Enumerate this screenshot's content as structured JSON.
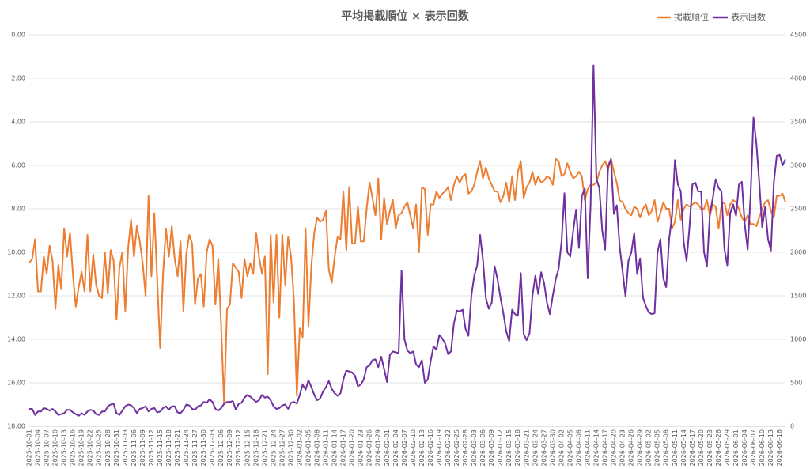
{
  "chart_data": {
    "type": "line",
    "title": "平均掲載順位 × 表示回数",
    "categories": [
      "2025-10-01",
      null,
      null,
      "2025-10-04",
      null,
      null,
      "2025-10-07",
      null,
      null,
      "2025-10-10",
      null,
      null,
      "2025-10-13",
      null,
      null,
      "2025-10-16",
      null,
      null,
      "2025-10-19",
      null,
      null,
      "2025-10-22",
      null,
      null,
      "2025-10-25",
      null,
      null,
      "2025-10-28",
      null,
      null,
      "2025-10-31",
      null,
      null,
      "2025-11-03",
      null,
      null,
      "2025-11-06",
      null,
      null,
      "2025-11-09",
      null,
      null,
      "2025-11-12",
      null,
      null,
      "2025-11-15",
      null,
      null,
      "2025-11-18",
      null,
      null,
      "2025-11-21",
      null,
      null,
      "2025-11-24",
      null,
      null,
      "2025-11-27",
      null,
      null,
      "2025-11-30",
      null,
      null,
      "2025-12-03",
      null,
      null,
      "2025-12-06",
      null,
      null,
      "2025-12-09",
      null,
      null,
      "2025-12-12",
      null,
      null,
      "2025-12-15",
      null,
      null,
      "2025-12-18",
      null,
      null,
      "2025-12-21",
      null,
      null,
      "2025-12-24",
      null,
      null,
      "2025-12-27",
      null,
      null,
      "2025-12-30",
      null,
      null,
      "2026-01-02",
      null,
      null,
      "2026-01-05",
      null,
      null,
      "2026-01-08",
      null,
      null,
      "2026-01-11",
      null,
      null,
      "2026-01-14",
      null,
      null,
      "2026-01-17",
      null,
      null,
      "2026-01-20",
      null,
      null,
      "2026-01-23",
      null,
      null,
      "2026-01-26",
      null,
      null,
      "2026-01-29",
      null,
      null,
      "2026-02-01",
      null,
      null,
      "2026-02-04",
      null,
      null,
      "2026-02-07",
      null,
      null,
      "2026-02-10",
      null,
      null,
      "2026-02-13",
      null,
      null,
      "2026-02-16",
      null,
      null,
      "2026-02-19",
      null,
      null,
      "2026-02-22",
      null,
      null,
      "2026-02-25",
      null,
      null,
      "2026-02-28",
      null,
      null,
      "2026-03-03",
      null,
      null,
      "2026-03-06",
      null,
      null,
      "2026-03-09",
      null,
      null,
      "2026-03-12",
      null,
      null,
      "2026-03-15",
      null,
      null,
      "2026-03-18",
      null,
      null,
      "2026-03-21",
      null,
      null,
      "2026-03-24",
      null,
      null,
      "2026-03-27",
      null,
      null,
      "2026-03-30",
      null,
      null,
      "2026-04-02",
      null,
      null,
      "2026-04-05",
      null,
      null,
      "2026-04-08",
      null,
      null,
      "2026-04-11",
      null,
      null,
      "2026-04-14",
      null,
      null,
      "2026-04-17",
      null,
      null,
      "2026-04-20",
      null,
      null,
      "2026-04-23",
      null,
      null,
      "2026-04-26",
      null,
      null,
      "2026-04-29",
      null,
      null,
      "2026-05-02",
      null,
      null,
      "2026-05-05",
      null,
      null,
      "2026-05-08",
      null,
      null,
      "2026-05-11",
      null,
      null,
      "2026-05-14",
      null,
      null,
      "2026-05-17",
      null,
      null,
      "2026-05-20",
      null,
      null,
      "2026-05-23",
      null,
      null,
      "2026-05-26",
      null,
      null,
      "2026-05-29",
      null,
      null,
      "2026-06-01",
      null,
      null,
      "2026-06-04",
      null,
      null,
      "2026-06-07",
      null,
      null,
      "2026-06-10",
      null,
      null,
      "2026-06-13",
      null,
      null,
      "2026-06-16",
      null,
      null
    ],
    "series": [
      {
        "name": "掲載順位",
        "color": "#ed7d31",
        "values": [
          10.5,
          10.3,
          9.4,
          11.8,
          11.8,
          10.2,
          11.0,
          9.7,
          10.4,
          12.6,
          10.6,
          11.7,
          8.9,
          10.2,
          9.1,
          11.0,
          12.5,
          11.6,
          10.9,
          11.8,
          9.2,
          11.8,
          10.1,
          11.5,
          12.0,
          12.1,
          10.0,
          11.9,
          9.9,
          10.4,
          13.1,
          10.7,
          10.0,
          12.7,
          9.8,
          8.5,
          10.2,
          8.8,
          9.5,
          10.5,
          12.0,
          7.4,
          11.1,
          8.2,
          11.3,
          14.4,
          11.0,
          8.9,
          10.2,
          8.8,
          10.3,
          11.1,
          9.5,
          12.7,
          10.1,
          9.2,
          9.6,
          12.4,
          11.2,
          11.0,
          12.5,
          10.0,
          9.4,
          9.7,
          12.4,
          10.3,
          13.5,
          17.0,
          12.6,
          12.4,
          10.5,
          10.7,
          10.9,
          12.1,
          10.3,
          11.1,
          10.5,
          11.0,
          9.1,
          10.2,
          11.0,
          10.2,
          15.6,
          9.2,
          12.3,
          9.2,
          13.0,
          9.2,
          11.5,
          9.3,
          10.2,
          12.2,
          16.6,
          13.5,
          13.9,
          8.9,
          13.4,
          10.6,
          9.1,
          8.4,
          8.6,
          8.5,
          8.1,
          10.8,
          11.4,
          10.2,
          9.3,
          9.4,
          7.2,
          9.9,
          7.0,
          9.6,
          9.6,
          7.9,
          9.5,
          9.5,
          8.0,
          6.8,
          7.5,
          8.3,
          6.6,
          9.4,
          7.5,
          8.7,
          8.1,
          7.6,
          8.9,
          8.3,
          8.2,
          7.9,
          7.7,
          8.3,
          8.9,
          7.8,
          10.0,
          7.0,
          7.1,
          9.2,
          7.8,
          7.8,
          7.2,
          7.5,
          7.3,
          7.2,
          7.0,
          7.6,
          6.9,
          6.5,
          6.8,
          6.5,
          6.4,
          7.3,
          7.2,
          6.9,
          6.3,
          5.8,
          6.6,
          6.1,
          6.6,
          6.9,
          7.2,
          7.2,
          7.7,
          7.4,
          6.8,
          7.7,
          6.5,
          7.6,
          6.3,
          5.8,
          7.5,
          7.0,
          6.8,
          6.3,
          6.9,
          6.5,
          6.8,
          6.7,
          6.5,
          6.6,
          6.9,
          5.7,
          5.8,
          6.5,
          6.4,
          5.9,
          6.3,
          6.6,
          6.5,
          6.3,
          6.5,
          7.6,
          7.1,
          6.9,
          6.9,
          6.8,
          6.3,
          6.0,
          5.8,
          6.2,
          5.7,
          6.3,
          6.8,
          7.6,
          7.7,
          8.0,
          8.2,
          8.3,
          7.9,
          8.0,
          8.4,
          8.0,
          7.8,
          8.3,
          8.1,
          7.6,
          8.6,
          8.2,
          7.7,
          8.0,
          8.0,
          8.9,
          8.6,
          7.6,
          8.5,
          8.0,
          7.8,
          7.9,
          7.8,
          7.7,
          7.8,
          8.0,
          8.0,
          7.6,
          8.3,
          7.8,
          7.9,
          8.9,
          7.8,
          7.7,
          8.3,
          7.8,
          7.6,
          7.7,
          8.0,
          8.4,
          8.6,
          8.3,
          8.7,
          8.7,
          8.8,
          8.4,
          8.0,
          7.7,
          7.6,
          8.1,
          8.4,
          7.4,
          7.4,
          7.3,
          7.7
        ]
      },
      {
        "name": "表示回数",
        "color": "#7030a0",
        "axis": "y2",
        "values": [
          200,
          200,
          130,
          170,
          170,
          210,
          200,
          180,
          200,
          170,
          130,
          140,
          150,
          190,
          190,
          160,
          140,
          120,
          150,
          130,
          170,
          190,
          180,
          140,
          130,
          170,
          170,
          230,
          250,
          260,
          150,
          130,
          180,
          230,
          250,
          240,
          210,
          150,
          200,
          210,
          230,
          170,
          200,
          210,
          160,
          170,
          210,
          230,
          190,
          230,
          230,
          160,
          150,
          190,
          250,
          240,
          200,
          190,
          230,
          240,
          280,
          270,
          310,
          280,
          200,
          180,
          210,
          260,
          280,
          280,
          290,
          190,
          260,
          270,
          330,
          360,
          340,
          310,
          280,
          300,
          360,
          330,
          340,
          300,
          230,
          200,
          210,
          240,
          250,
          200,
          270,
          280,
          260,
          360,
          480,
          420,
          530,
          450,
          360,
          300,
          320,
          400,
          450,
          520,
          430,
          380,
          350,
          380,
          540,
          640,
          630,
          620,
          580,
          460,
          480,
          540,
          680,
          700,
          760,
          770,
          680,
          800,
          660,
          510,
          820,
          860,
          850,
          840,
          1790,
          1000,
          870,
          840,
          860,
          710,
          680,
          760,
          500,
          540,
          750,
          920,
          880,
          1050,
          1010,
          950,
          830,
          860,
          1180,
          1330,
          1320,
          1340,
          1120,
          1040,
          1500,
          1730,
          1850,
          2200,
          1910,
          1470,
          1350,
          1420,
          1840,
          1690,
          1480,
          1300,
          1090,
          980,
          1340,
          1290,
          1270,
          1760,
          1060,
          990,
          1070,
          1500,
          1730,
          1520,
          1770,
          1650,
          1420,
          1290,
          1500,
          1690,
          1810,
          2120,
          2680,
          2000,
          1950,
          2240,
          2490,
          2050,
          2650,
          2730,
          1700,
          2550,
          4150,
          2840,
          2740,
          2250,
          2030,
          2990,
          3070,
          2440,
          2540,
          2060,
          1780,
          1490,
          1900,
          2000,
          2220,
          1750,
          1930,
          1480,
          1380,
          1310,
          1290,
          1300,
          2000,
          2150,
          1700,
          1600,
          2150,
          2420,
          3060,
          2780,
          2700,
          2120,
          1900,
          2290,
          2780,
          2800,
          2700,
          2700,
          2000,
          1840,
          2440,
          2620,
          2840,
          2740,
          2700,
          2040,
          1850,
          2450,
          2550,
          2420,
          2780,
          2810,
          2320,
          2030,
          2650,
          3550,
          3250,
          2800,
          2290,
          2520,
          2150,
          2020,
          2800,
          3110,
          3120,
          3000,
          3070
        ]
      }
    ],
    "ylim": [
      18,
      0
    ],
    "yticks": [
      {
        "value": 0,
        "label": "0.00"
      },
      {
        "value": 2,
        "label": "2.00"
      },
      {
        "value": 4,
        "label": "4.00"
      },
      {
        "value": 6,
        "label": "6.00"
      },
      {
        "value": 8,
        "label": "8.00"
      },
      {
        "value": 10,
        "label": "10.00"
      },
      {
        "value": 12,
        "label": "12.00"
      },
      {
        "value": 14,
        "label": "14.00"
      },
      {
        "value": 16,
        "label": "16.00"
      },
      {
        "value": 18,
        "label": "18.00"
      }
    ],
    "y2lim": [
      0,
      4500
    ],
    "y2ticks": [
      0,
      500,
      1000,
      1500,
      2000,
      2500,
      3000,
      3500,
      4000,
      4500
    ],
    "grid": true,
    "legend": "top-right"
  }
}
